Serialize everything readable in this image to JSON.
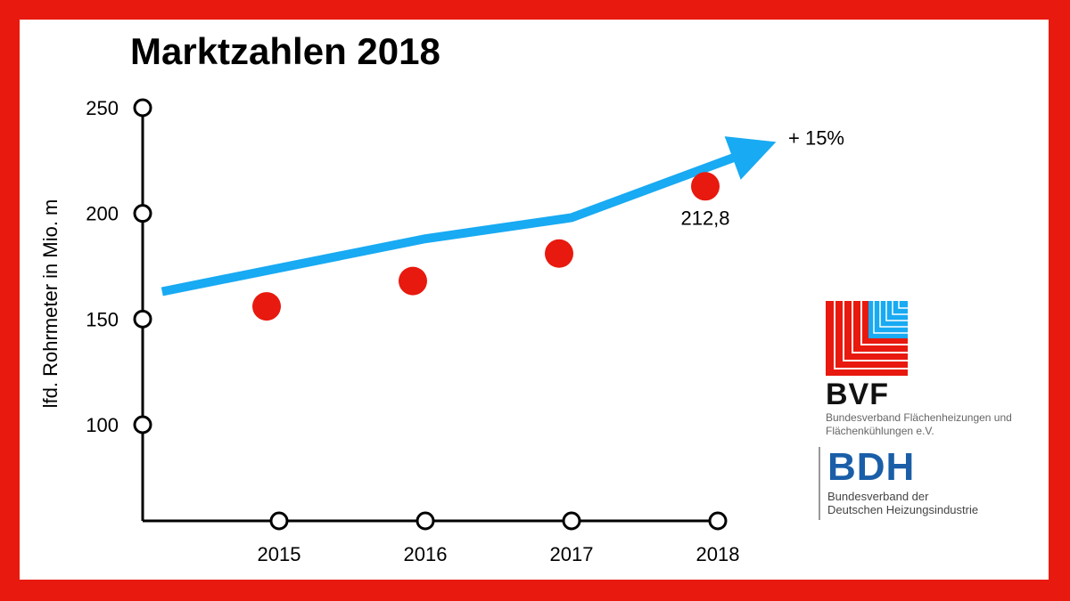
{
  "chart_data": {
    "type": "scatter",
    "title": "Marktzahlen 2018",
    "ylabel": "lfd. Rohrmeter in Mio. m",
    "xlabel": "",
    "categories": [
      "2015",
      "2016",
      "2017",
      "2018"
    ],
    "y_ticks": [
      "100",
      "150",
      "200",
      "250"
    ],
    "ylim": [
      55,
      250
    ],
    "values": [
      156,
      168,
      181,
      212.8
    ],
    "data_labels": [
      "",
      "",
      "",
      "212,8"
    ],
    "trend_arrow": {
      "points": [
        [
          2014.2,
          163
        ],
        [
          2016,
          188
        ],
        [
          2017,
          198
        ],
        [
          2018.25,
          230
        ]
      ],
      "label": "+ 15%",
      "color": "#18aaf2"
    },
    "point_color": "#e8190e",
    "frame_color": "#e8190e",
    "grid": false
  },
  "logos": {
    "bvf": {
      "abbr": "BVF",
      "full": "Bundesverband Flächenheizungen und Flächenkühlungen e.V.",
      "colors": [
        "#e8190e",
        "#18aaf2"
      ]
    },
    "bdh": {
      "abbr": "BDH",
      "full_line1": "Bundesverband der",
      "full_line2": "Deutschen Heizungsindustrie",
      "color": "#1a5ea8"
    }
  }
}
